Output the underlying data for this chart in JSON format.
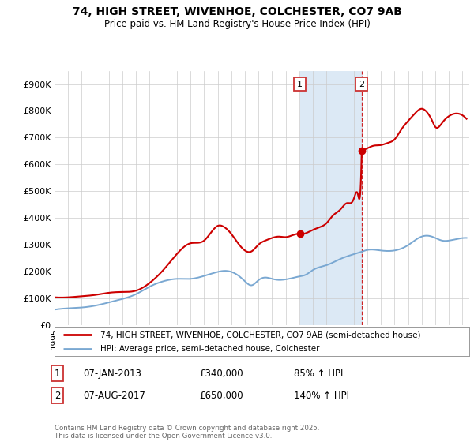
{
  "title_line1": "74, HIGH STREET, WIVENHOE, COLCHESTER, CO7 9AB",
  "title_line2": "Price paid vs. HM Land Registry's House Price Index (HPI)",
  "xlim_start": 1995.0,
  "xlim_end": 2025.5,
  "ylim": [
    0,
    950000
  ],
  "yticks": [
    0,
    100000,
    200000,
    300000,
    400000,
    500000,
    600000,
    700000,
    800000,
    900000
  ],
  "ytick_labels": [
    "£0",
    "£100K",
    "£200K",
    "£300K",
    "£400K",
    "£500K",
    "£600K",
    "£700K",
    "£800K",
    "£900K"
  ],
  "sale1_date": 2013.04,
  "sale1_price": 340000,
  "sale2_date": 2017.59,
  "sale2_price": 650000,
  "legend_property": "74, HIGH STREET, WIVENHOE, COLCHESTER, CO7 9AB (semi-detached house)",
  "legend_hpi": "HPI: Average price, semi-detached house, Colchester",
  "annotation1": [
    "1",
    "07-JAN-2013",
    "£340,000",
    "85% ↑ HPI"
  ],
  "annotation2": [
    "2",
    "07-AUG-2017",
    "£650,000",
    "140% ↑ HPI"
  ],
  "footer": "Contains HM Land Registry data © Crown copyright and database right 2025.\nThis data is licensed under the Open Government Licence v3.0.",
  "color_property": "#cc0000",
  "color_hpi": "#7aa8d2",
  "color_shade": "#dce9f5",
  "background_color": "#ffffff",
  "grid_color": "#cccccc"
}
